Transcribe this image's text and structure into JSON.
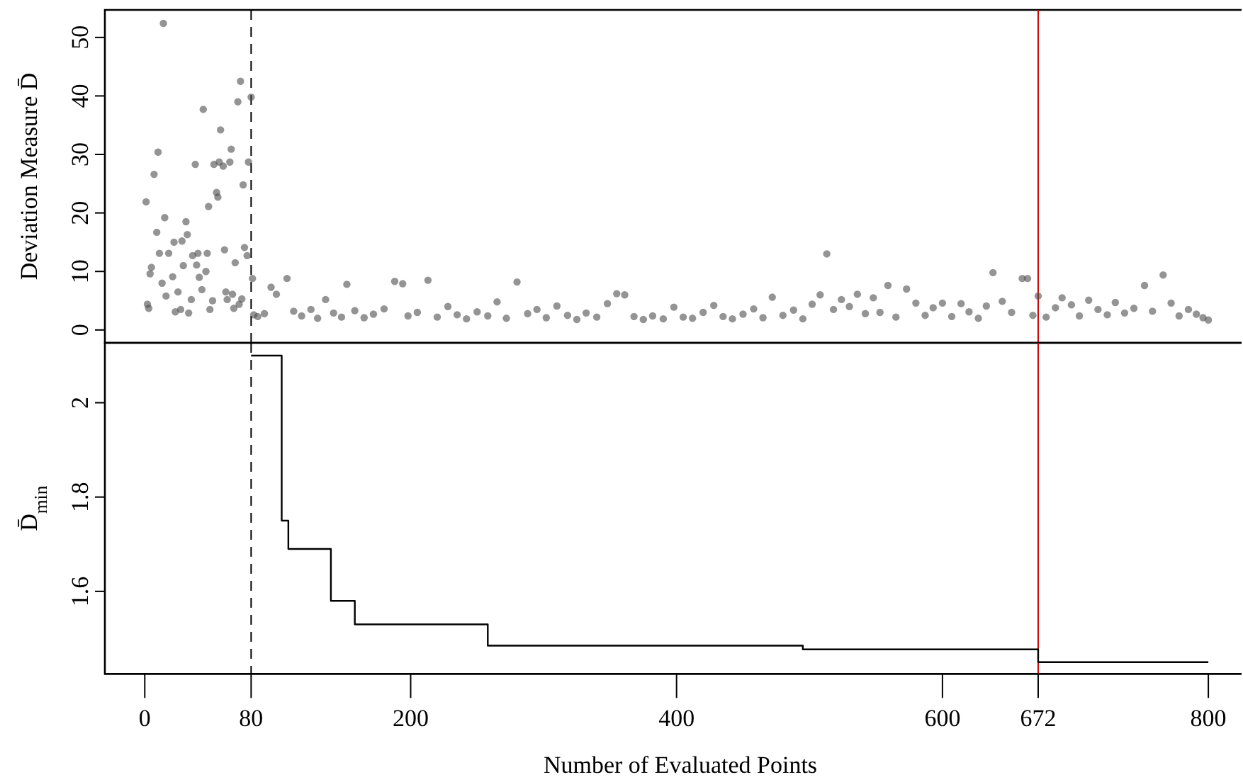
{
  "chart_data": [
    {
      "type": "scatter",
      "ylabel": "Deviation Measure D̄",
      "xlim": [
        -30,
        825
      ],
      "ylim": [
        -2.2,
        54.7
      ],
      "xticks": [
        0,
        80,
        200,
        400,
        600,
        672,
        800
      ],
      "yticks": [
        0,
        10,
        20,
        30,
        40,
        50
      ],
      "tick_labels": "y",
      "marker": "circle",
      "color": "#4d4d4d",
      "x": [
        1,
        2,
        3,
        4,
        5,
        7,
        9,
        10,
        11,
        13,
        14,
        15,
        16,
        18,
        21,
        22,
        23,
        25,
        27,
        28,
        29,
        31,
        32,
        33,
        35,
        36,
        38,
        39,
        40,
        41,
        43,
        44,
        46,
        47,
        48,
        49,
        51,
        52,
        54,
        55,
        56,
        57,
        59,
        60,
        61,
        62,
        64,
        65,
        66,
        67,
        68,
        70,
        71,
        72,
        73,
        74,
        75,
        77,
        78,
        80,
        81,
        82,
        85,
        90,
        95,
        99,
        107,
        112,
        118,
        125,
        130,
        136,
        142,
        148,
        152,
        158,
        165,
        172,
        180,
        188,
        194,
        198,
        205,
        213,
        220,
        228,
        235,
        242,
        250,
        258,
        265,
        272,
        280,
        288,
        295,
        302,
        310,
        318,
        325,
        332,
        340,
        348,
        355,
        361,
        368,
        375,
        382,
        390,
        398,
        405,
        412,
        420,
        428,
        435,
        442,
        450,
        458,
        465,
        472,
        480,
        488,
        495,
        502,
        508,
        513,
        518,
        524,
        530,
        536,
        542,
        548,
        553,
        559,
        565,
        573,
        580,
        587,
        593,
        600,
        607,
        614,
        620,
        627,
        633,
        638,
        645,
        652,
        660,
        664,
        668,
        672,
        678,
        685,
        690,
        697,
        703,
        710,
        717,
        724,
        730,
        737,
        744,
        752,
        758,
        766,
        772,
        778,
        785,
        791,
        796,
        800
      ],
      "values": [
        21.9,
        4.4,
        3.7,
        9.6,
        10.7,
        26.6,
        16.7,
        30.4,
        13.1,
        8.0,
        52.4,
        19.2,
        5.8,
        13.1,
        9.1,
        15.0,
        3.1,
        6.5,
        3.5,
        15.2,
        11.0,
        18.5,
        16.3,
        2.9,
        5.2,
        12.7,
        28.3,
        11.1,
        13.1,
        9.0,
        6.9,
        37.7,
        10.0,
        13.1,
        21.1,
        3.5,
        5.0,
        28.3,
        23.5,
        22.7,
        28.7,
        34.2,
        28.0,
        13.7,
        6.5,
        5.2,
        28.7,
        30.9,
        6.1,
        3.7,
        11.5,
        39.0,
        4.4,
        42.5,
        5.3,
        24.8,
        14.1,
        12.7,
        28.7,
        39.8,
        8.8,
        2.6,
        2.3,
        2.8,
        7.3,
        6.1,
        8.8,
        3.2,
        2.4,
        3.5,
        2.0,
        5.2,
        2.9,
        2.2,
        7.8,
        3.3,
        2.1,
        2.7,
        3.6,
        8.3,
        7.9,
        2.4,
        3.0,
        8.5,
        2.2,
        4.0,
        2.6,
        1.9,
        3.1,
        2.4,
        4.8,
        2.0,
        8.2,
        2.8,
        3.5,
        2.1,
        4.1,
        2.5,
        1.8,
        2.9,
        2.2,
        4.5,
        6.2,
        6.0,
        2.3,
        1.8,
        2.4,
        1.9,
        3.9,
        2.2,
        2.0,
        3.0,
        4.2,
        2.3,
        1.9,
        2.7,
        3.6,
        2.1,
        5.6,
        2.5,
        3.4,
        1.9,
        4.4,
        6.0,
        13.0,
        3.5,
        5.2,
        4.0,
        6.1,
        2.8,
        5.5,
        3.0,
        7.6,
        2.2,
        7.0,
        4.6,
        2.5,
        3.8,
        4.6,
        2.3,
        4.5,
        3.1,
        2.0,
        4.1,
        9.8,
        4.9,
        3.0,
        8.8,
        8.8,
        2.5,
        5.8,
        2.2,
        3.8,
        5.5,
        4.3,
        2.4,
        5.1,
        3.5,
        2.6,
        4.7,
        2.9,
        3.7,
        7.6,
        3.2,
        9.4,
        4.6,
        2.4,
        3.5,
        2.7,
        2.1,
        1.7
      ],
      "ref_lines": [
        {
          "axis": "x",
          "value": 80,
          "color": "#000000",
          "line_style": "dashed"
        },
        {
          "axis": "x",
          "value": 672,
          "color": "#cc0000",
          "line_style": "solid"
        }
      ]
    },
    {
      "type": "step",
      "ylabel": "D̄$_{min}$",
      "xlabel": "Number of Evaluated Points",
      "xlim": [
        -30,
        825
      ],
      "ylim": [
        1.425,
        2.127
      ],
      "xticks": [
        0,
        80,
        200,
        400,
        600,
        672,
        800
      ],
      "yticks": [
        1.6,
        1.8,
        2
      ],
      "color": "#000000",
      "x": [
        80,
        103,
        108,
        140,
        158,
        258,
        495,
        672,
        800
      ],
      "values": [
        2.1,
        1.75,
        1.69,
        1.58,
        1.53,
        1.485,
        1.477,
        1.45,
        1.45
      ],
      "ref_lines": [
        {
          "axis": "x",
          "value": 80,
          "color": "#000000",
          "line_style": "dashed"
        },
        {
          "axis": "x",
          "value": 672,
          "color": "#cc0000",
          "line_style": "solid"
        }
      ]
    }
  ]
}
